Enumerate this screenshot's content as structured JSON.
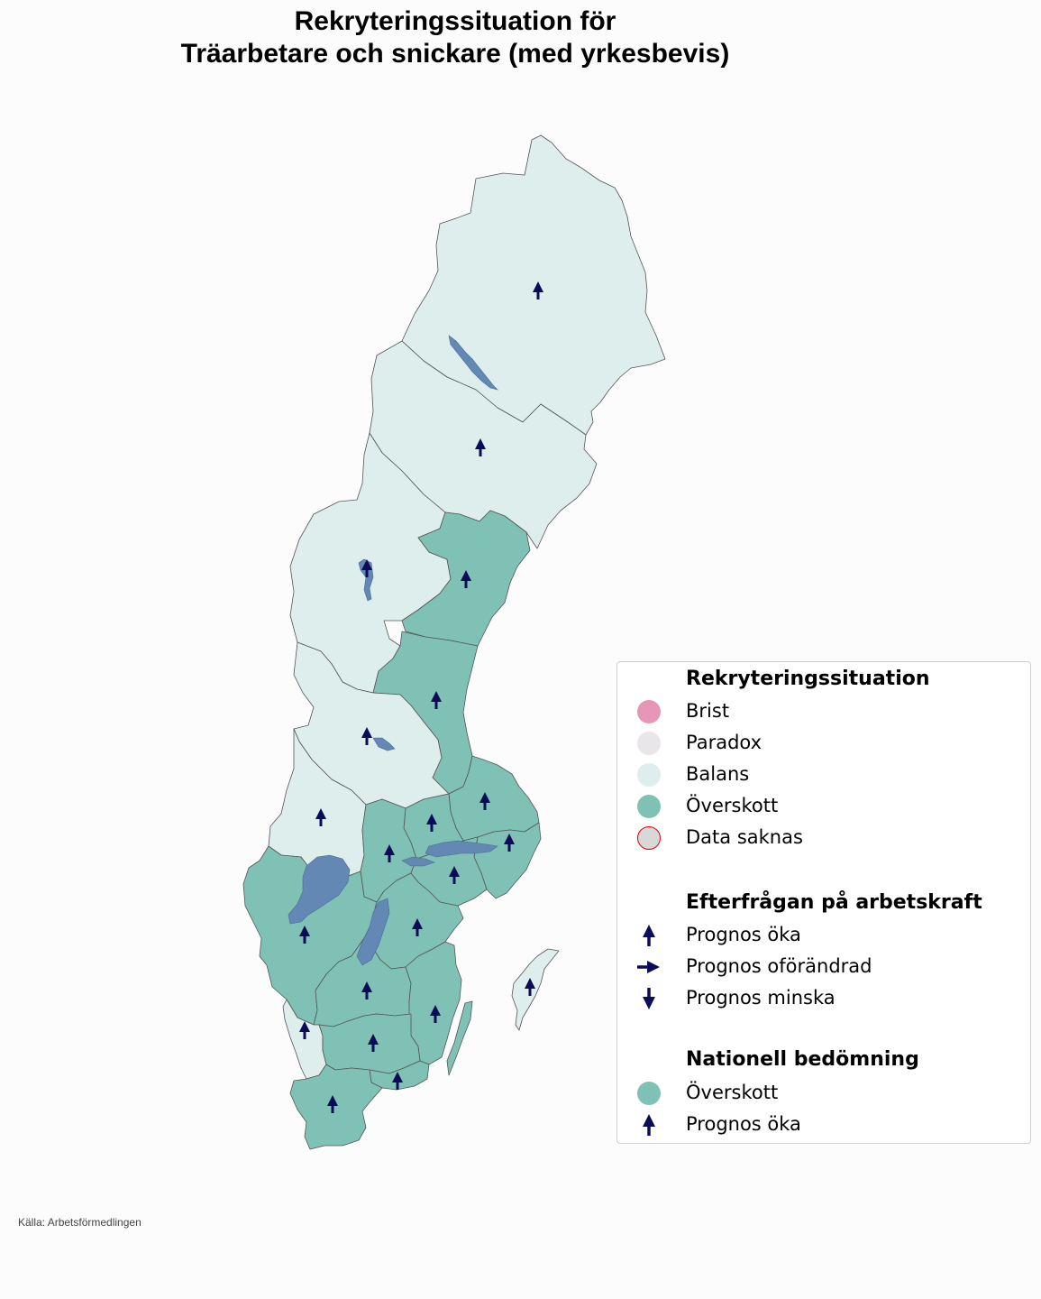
{
  "title": {
    "line1": "Rekryteringssituation för",
    "line2": "Träarbetare och snickare (med yrkesbevis)"
  },
  "colors": {
    "brist": "#e597b5",
    "paradox": "#e8e6e9",
    "balans": "#ddeeec",
    "overskott": "#7fc2b5",
    "data_saknas_fill": "#d8d8d8",
    "data_saknas_edge": "#e00000",
    "arrow": "#0b0b5a",
    "lake": "#6388b4"
  },
  "regions": [
    {
      "name": "Norrbotten",
      "status": "Balans",
      "forecast": "Prognos öka"
    },
    {
      "name": "Västerbotten",
      "status": "Balans",
      "forecast": "Prognos öka"
    },
    {
      "name": "Jämtland",
      "status": "Balans",
      "forecast": "Prognos öka"
    },
    {
      "name": "Västernorrland",
      "status": "Överskott",
      "forecast": "Prognos öka"
    },
    {
      "name": "Gävleborg",
      "status": "Överskott",
      "forecast": "Prognos öka"
    },
    {
      "name": "Dalarna",
      "status": "Balans",
      "forecast": "Prognos öka"
    },
    {
      "name": "Värmland",
      "status": "Balans",
      "forecast": "Prognos öka"
    },
    {
      "name": "Uppsala",
      "status": "Överskott",
      "forecast": "Prognos öka"
    },
    {
      "name": "Västmanland",
      "status": "Överskott",
      "forecast": "Prognos öka"
    },
    {
      "name": "Örebro",
      "status": "Överskott",
      "forecast": "Prognos öka"
    },
    {
      "name": "Stockholm",
      "status": "Överskott",
      "forecast": "Prognos öka"
    },
    {
      "name": "Södermanland",
      "status": "Överskott",
      "forecast": "Prognos öka"
    },
    {
      "name": "Västra Götaland",
      "status": "Överskott",
      "forecast": "Prognos öka"
    },
    {
      "name": "Östergötland",
      "status": "Överskott",
      "forecast": "Prognos öka"
    },
    {
      "name": "Jönköping",
      "status": "Överskott",
      "forecast": "Prognos öka"
    },
    {
      "name": "Kalmar",
      "status": "Överskott",
      "forecast": "Prognos öka"
    },
    {
      "name": "Gotland",
      "status": "Balans",
      "forecast": "Prognos öka"
    },
    {
      "name": "Halland",
      "status": "Balans",
      "forecast": "Prognos öka"
    },
    {
      "name": "Kronoberg",
      "status": "Överskott",
      "forecast": "Prognos öka"
    },
    {
      "name": "Blekinge",
      "status": "Överskott",
      "forecast": "Prognos öka"
    },
    {
      "name": "Skåne",
      "status": "Överskott",
      "forecast": "Prognos öka"
    }
  ],
  "legend": {
    "section1_title": "Rekryteringssituation",
    "status_items": [
      {
        "label": "Brist",
        "color_key": "brist"
      },
      {
        "label": "Paradox",
        "color_key": "paradox"
      },
      {
        "label": "Balans",
        "color_key": "balans"
      },
      {
        "label": "Överskott",
        "color_key": "overskott"
      },
      {
        "label": "Data saknas",
        "color_key": "data_saknas_fill"
      }
    ],
    "section2_title": "Efterfrågan på arbetskraft",
    "forecast_items": [
      {
        "label": "Prognos öka",
        "arrow": "up-arrow-icon"
      },
      {
        "label": "Prognos oförändrad",
        "arrow": "right-arrow-icon"
      },
      {
        "label": "Prognos minska",
        "arrow": "down-arrow-icon"
      }
    ],
    "section3_title": "Nationell bedömning",
    "national": {
      "status": "Överskott",
      "forecast": "Prognos öka"
    }
  },
  "source": "Källa: Arbetsförmedlingen"
}
